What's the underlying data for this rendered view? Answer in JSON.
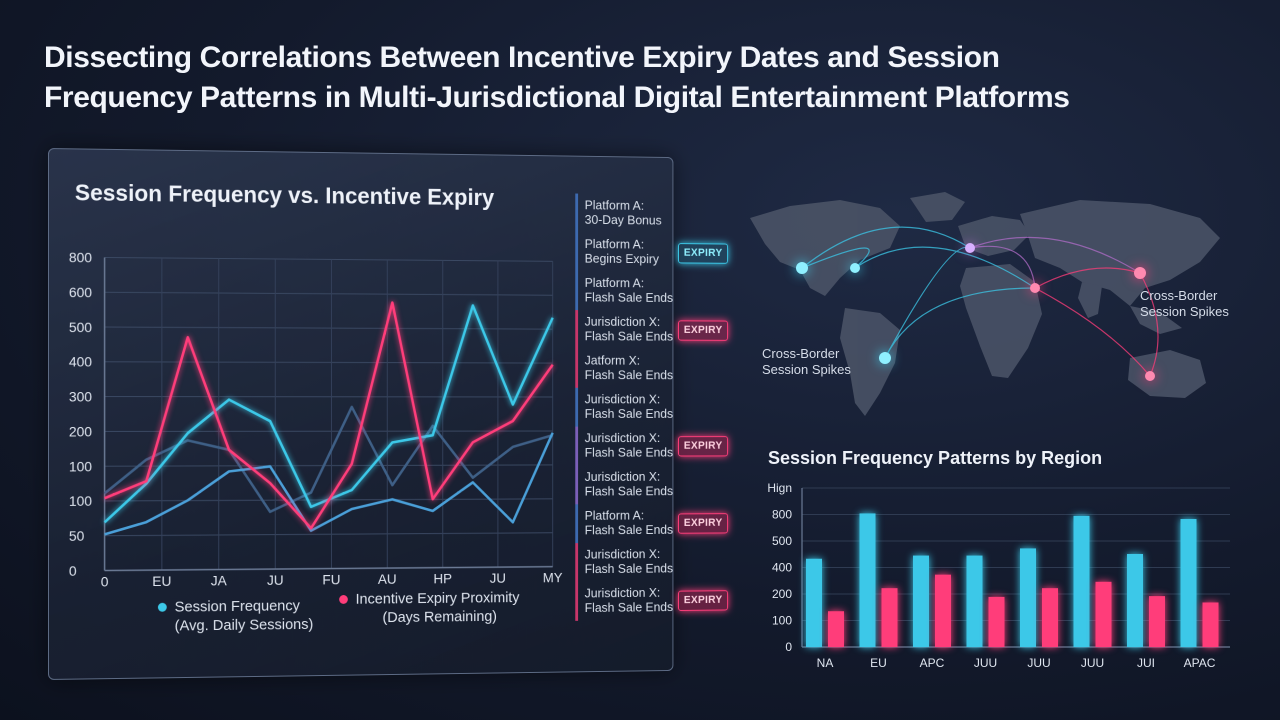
{
  "title": {
    "line1": "Dissecting Correlations Between Incentive Expiry Dates and Session",
    "line2": "Frequency Patterns in Multi-Jurisdictional Digital Entertainment Platforms"
  },
  "colors": {
    "cyan": "#3cc8e8",
    "pink": "#ff3d7a",
    "steel": "#4c7aa8",
    "background": "#131a2c"
  },
  "chart_data": [
    {
      "type": "line",
      "title": "Session Frequency vs. Incentive Expiry",
      "y_ticks": [
        "800",
        "600",
        "500",
        "400",
        "300",
        "200",
        "100",
        "100",
        "50",
        "0"
      ],
      "x_ticks": [
        "0",
        "EU",
        "JA",
        "JU",
        "FU",
        "AU",
        "HP",
        "JU",
        "MY"
      ],
      "grid": true,
      "series": [
        {
          "name": "Session Frequency (Avg. Daily Sessions)",
          "color": "#3cc8e8",
          "values": [
            100,
            180,
            285,
            355,
            310,
            130,
            165,
            265,
            280,
            555,
            345,
            530
          ]
        },
        {
          "name": "Incentive Expiry Proximity (Days Remaining)",
          "color": "#ff3d7a",
          "values": [
            150,
            185,
            485,
            250,
            180,
            85,
            220,
            560,
            145,
            265,
            310,
            430
          ]
        },
        {
          "color": "#4a9fd8",
          "values": [
            75,
            100,
            145,
            205,
            215,
            80,
            125,
            145,
            120,
            180,
            95,
            285
          ]
        },
        {
          "color": "#3e5f86",
          "values": [
            160,
            230,
            270,
            250,
            120,
            160,
            340,
            175,
            300,
            190,
            255,
            280
          ]
        }
      ],
      "legend": {
        "session_line1": "Session Frequency",
        "session_line2": "(Avg. Daily Sessions)",
        "expiry_line1": "Incentive Expiry Proximity",
        "expiry_line2": "(Days Remaining)"
      }
    },
    {
      "type": "bar",
      "title": "Session Frequency Patterns by Region",
      "y_ticks": [
        "Hign",
        "800",
        "500",
        "400",
        "200",
        "100",
        "0"
      ],
      "categories": [
        "NA",
        "EU",
        "APC",
        "JUU",
        "JUU",
        "JUU",
        "JUI",
        "APAC"
      ],
      "ylim": [
        0,
        1000
      ],
      "grid": true,
      "series": [
        {
          "color": "#3cc8e8",
          "values": [
            555,
            840,
            575,
            575,
            620,
            825,
            585,
            805
          ]
        },
        {
          "color": "#ff3d7a",
          "values": [
            225,
            370,
            455,
            315,
            370,
            410,
            320,
            280
          ]
        }
      ]
    }
  ],
  "events": [
    {
      "line1": "Platform A:",
      "line2": "30-Day Bonus",
      "badge": "",
      "tone": 0
    },
    {
      "line1": "Platform A:",
      "line2": "Begins Expiry",
      "badge": "EXPIRY",
      "badge_color": "cyan",
      "tone": 0
    },
    {
      "line1": "Platform A:",
      "line2": "Flash Sale Ends",
      "badge": "",
      "tone": 0
    },
    {
      "line1": "Jurisdiction X:",
      "line2": "Flash Sale Ends",
      "badge": "EXPIRY",
      "badge_color": "pink",
      "tone": 1
    },
    {
      "line1": "Jatform X:",
      "line2": "Flash Sale Ends",
      "badge": "",
      "tone": 1
    },
    {
      "line1": "Jurisdiction X:",
      "line2": "Flash Sale Ends",
      "badge": "",
      "tone": 0
    },
    {
      "line1": "Jurisdiction X:",
      "line2": "Flash Sale Ends",
      "badge": "EXPIRY",
      "badge_color": "pink",
      "tone": 2
    },
    {
      "line1": "Jurisdiction X:",
      "line2": "Flash Sale Ends",
      "badge": "",
      "tone": 2
    },
    {
      "line1": "Platform A:",
      "line2": "Flash Sale Ends",
      "badge": "EXPIRY",
      "badge_color": "pink",
      "tone": 0
    },
    {
      "line1": "Jurisdiction X:",
      "line2": "Flash Sale Ends",
      "badge": "",
      "tone": 1
    },
    {
      "line1": "Jurisdiction X:",
      "line2": "Flash Sale Ends",
      "badge": "EXPIRY",
      "badge_color": "pink",
      "tone": 1
    }
  ],
  "map": {
    "label_right_line1": "Cross-Border",
    "label_right_line2": "Session Spikes",
    "label_left_line1": "Cross-Border",
    "label_left_line2": "Session Spikes"
  }
}
